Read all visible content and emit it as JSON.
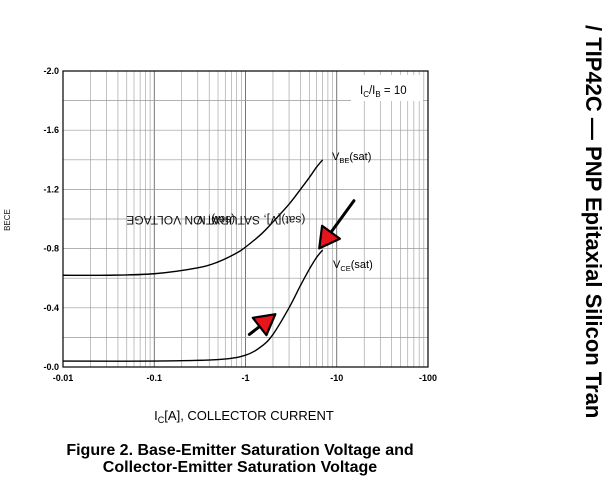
{
  "chart_data": {
    "type": "line",
    "x_scale": "log",
    "x_ticks": [
      "-0.01",
      "-0.1",
      "-1",
      "-10",
      "-100"
    ],
    "y_ticks": [
      "-0.0",
      "-0.4",
      "-0.8",
      "-1.2",
      "-1.6",
      "-2.0"
    ],
    "xlim": [
      0.01,
      100
    ],
    "ylim": [
      0,
      2.0
    ],
    "xlabel": "I_C[A], COLLECTOR CURRENT",
    "ylabel": "V_BE(sat), V_CE(sat)[V], SATURATION VOLTAGE",
    "annotation": "I_C/I_B = 10",
    "grid": true,
    "series": [
      {
        "name": "V_BE(sat)",
        "x": [
          0.01,
          0.03,
          0.1,
          0.3,
          0.5,
          0.8,
          1.0,
          1.5,
          2.0,
          3.0,
          4.0,
          5.0,
          6.0,
          7.0
        ],
        "y": [
          0.62,
          0.62,
          0.63,
          0.67,
          0.71,
          0.77,
          0.81,
          0.9,
          0.98,
          1.1,
          1.2,
          1.28,
          1.35,
          1.4
        ]
      },
      {
        "name": "V_CE(sat)",
        "x": [
          0.01,
          0.1,
          0.5,
          1.0,
          1.5,
          2.0,
          3.0,
          4.0,
          5.0,
          6.0,
          7.0
        ],
        "y": [
          0.04,
          0.04,
          0.05,
          0.08,
          0.14,
          0.22,
          0.4,
          0.55,
          0.66,
          0.74,
          0.79
        ]
      }
    ]
  },
  "labels": {
    "ratio_main": "I",
    "ratio_sub1": "C",
    "ratio_mid": "/I",
    "ratio_sub2": "B",
    "ratio_tail": " = 10",
    "vbe_main": "V",
    "vbe_sub": "BE",
    "vbe_tail": "(sat)",
    "vce_main": "V",
    "vce_sub": "CE",
    "vce_tail": "(sat)",
    "xlabel_main": "I",
    "xlabel_sub": "C",
    "xlabel_tail": "[A], COLLECTOR CURRENT",
    "ylabel_a": "V",
    "ylabel_a_sub": "BE",
    "ylabel_b": "(sat), V",
    "ylabel_b_sub": "CE",
    "ylabel_c": "(sat)[V], SATURATION VOLTAGE"
  },
  "side_title": "/ TIP42C — PNP Epitaxial Silicon Tran",
  "caption": {
    "line1": "Figure 2. Base-Emitter Saturation Voltage and",
    "line2": "Collector-Emitter Saturation Voltage"
  },
  "colors": {
    "curve": "#000000",
    "grid": "#999999",
    "arrow_fill": "#e8141c",
    "arrow_stroke": "#000000"
  }
}
